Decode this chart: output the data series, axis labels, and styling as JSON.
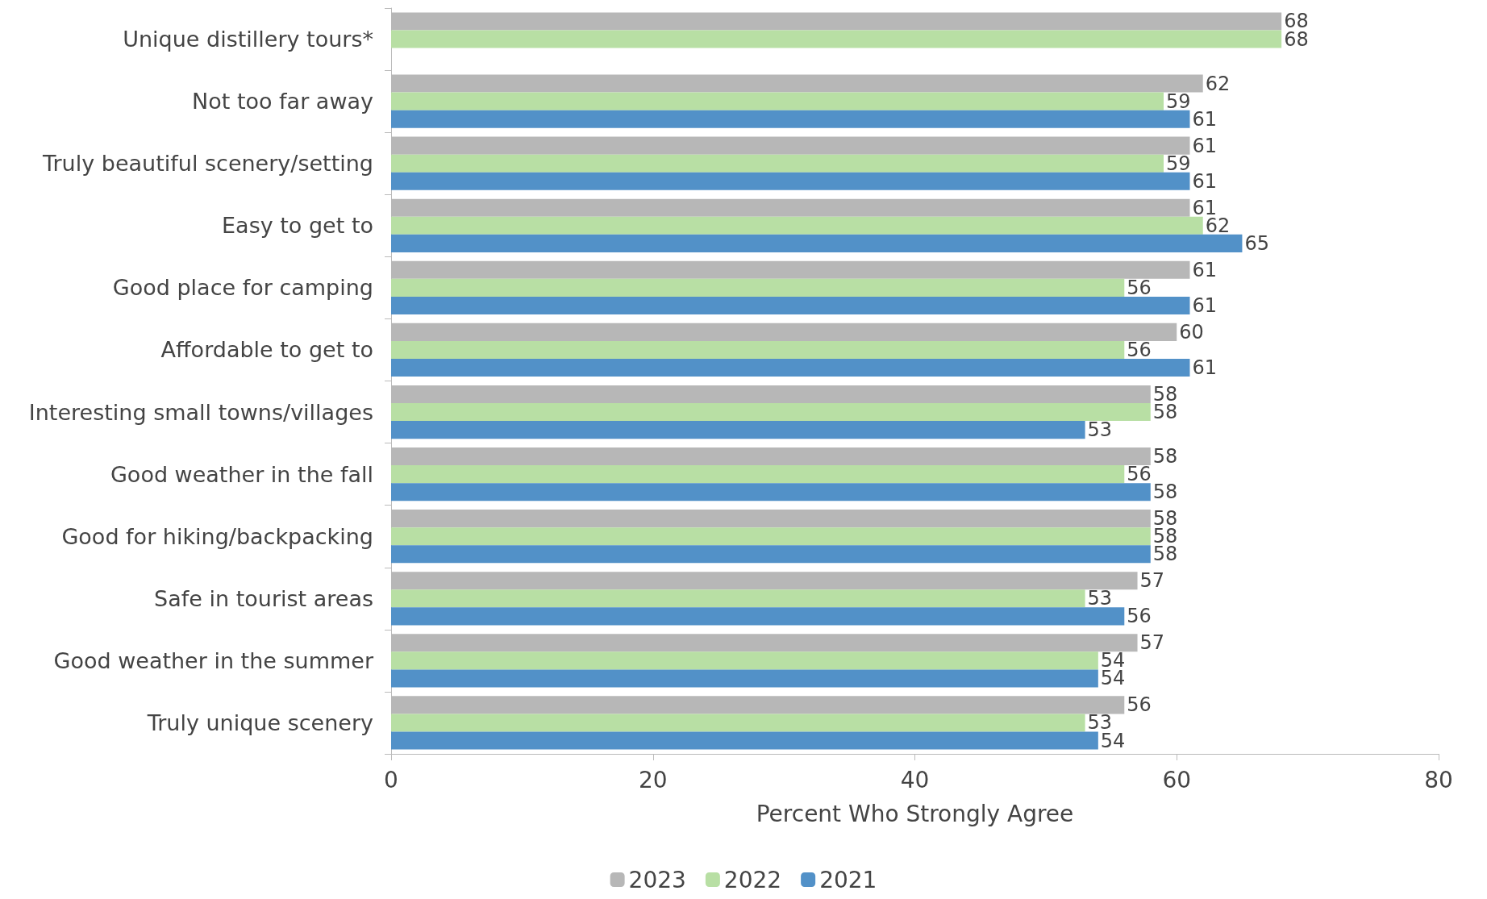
{
  "chart_data": {
    "type": "bar",
    "orientation": "horizontal",
    "xlabel": "Percent Who Strongly Agree",
    "categories": [
      "Unique distillery tours*",
      "Not too far away",
      "Truly beautiful scenery/setting",
      "Easy to get to",
      "Good place for camping",
      "Affordable to get to",
      "Interesting small towns/villages",
      "Good weather in the fall",
      "Good for hiking/backpacking",
      "Safe in tourist areas",
      "Good weather in the summer",
      "Truly unique scenery"
    ],
    "series": [
      {
        "name": "2023",
        "color": "#b7b7b7",
        "values": [
          68,
          62,
          61,
          61,
          61,
          60,
          58,
          58,
          58,
          57,
          57,
          56
        ]
      },
      {
        "name": "2022",
        "color": "#b8dfa4",
        "values": [
          68,
          59,
          59,
          62,
          56,
          56,
          58,
          56,
          58,
          53,
          54,
          53
        ]
      },
      {
        "name": "2021",
        "color": "#5291c8",
        "values": [
          null,
          61,
          61,
          65,
          61,
          61,
          53,
          58,
          58,
          56,
          54,
          54
        ]
      }
    ],
    "xlim": [
      0,
      80
    ],
    "xticks": [
      0,
      20,
      40,
      60,
      80
    ],
    "grid": false,
    "legend": "bottom",
    "data_labels": true
  }
}
